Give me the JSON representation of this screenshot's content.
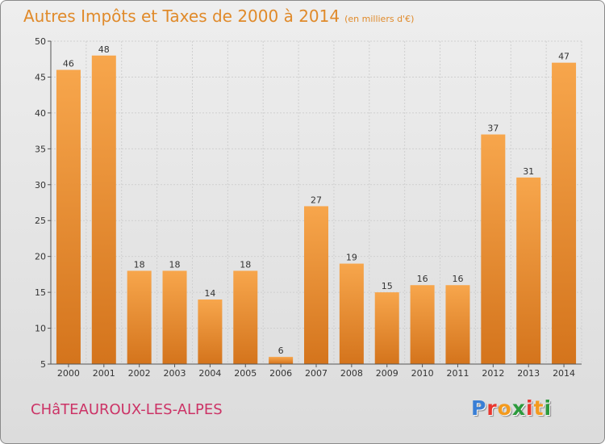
{
  "title": "Autres Impôts et Taxes de 2000 à 2014",
  "subtitle": "(en milliers d'€)",
  "commune": "CHâTEAUROUX-LES-ALPES",
  "logo": {
    "letters": [
      "P",
      "r",
      "o",
      "x",
      "i",
      "t",
      "i"
    ],
    "colors": [
      "#3a7fd5",
      "#e8372f",
      "#f39a1e",
      "#2c9a3c",
      "#e8372f",
      "#f39a1e",
      "#2c9a3c"
    ]
  },
  "colors": {
    "bar_top": "#f7a64c",
    "bar_bottom": "#d4741c",
    "accent": "#e08a2a",
    "commune": "#cc3366"
  },
  "chart_data": {
    "type": "bar",
    "title": "Autres Impôts et Taxes de 2000 à 2014",
    "subtitle": "(en milliers d'€)",
    "categories": [
      "2000",
      "2001",
      "2002",
      "2003",
      "2004",
      "2005",
      "2006",
      "2007",
      "2008",
      "2009",
      "2010",
      "2011",
      "2012",
      "2013",
      "2014"
    ],
    "values": [
      46,
      48,
      18,
      18,
      14,
      18,
      6,
      27,
      19,
      15,
      16,
      16,
      37,
      31,
      47
    ],
    "ylim": [
      5,
      50
    ],
    "yticks": [
      5,
      10,
      15,
      20,
      25,
      30,
      35,
      40,
      45,
      50
    ],
    "grid": true,
    "data_labels": true
  }
}
